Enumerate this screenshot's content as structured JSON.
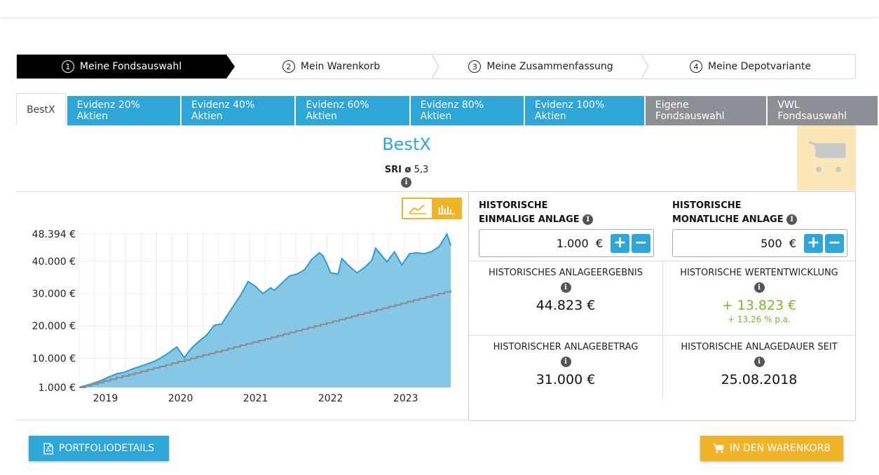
{
  "stepper": {
    "steps": [
      {
        "num": "1",
        "label": "Meine Fondsauswahl"
      },
      {
        "num": "2",
        "label": "Mein Warenkorb"
      },
      {
        "num": "3",
        "label": "Meine Zusammenfassung"
      },
      {
        "num": "4",
        "label": "Meine Depotvariante"
      }
    ],
    "active_index": 0
  },
  "tabs": [
    "BestX",
    "Evidenz 20% Aktien",
    "Evidenz 40% Aktien",
    "Evidenz 60% Aktien",
    "Evidenz 80% Aktien",
    "Evidenz 100% Aktien",
    "Eigene Fondsauswahl",
    "VWL Fondsauswahl"
  ],
  "fund": {
    "title": "BestX",
    "sri_label": "SRI ø",
    "sri_value": "5,3"
  },
  "inputs": {
    "one_time": {
      "label_line1": "HISTORISCHE",
      "label_line2": "EINMALIGE ANLAGE",
      "value": "1.000",
      "currency": "€"
    },
    "monthly": {
      "label_line1": "HISTORISCHE",
      "label_line2": "MONATLICHE ANLAGE",
      "value": "500",
      "currency": "€"
    }
  },
  "results": {
    "result_label": "HISTORISCHES ANLAGEERGEBNIS",
    "result_value": "44.823 €",
    "growth_label": "HISTORISCHE WERTENTWICKLUNG",
    "growth_value": "+ 13.823 €",
    "growth_pa": "+ 13,26 % p.a.",
    "amount_label": "HISTORISCHER ANLAGEBETRAG",
    "amount_value": "31.000 €",
    "duration_label": "HISTORISCHE ANLAGEDAUER SEIT",
    "duration_value": "25.08.2018"
  },
  "buttons": {
    "portfolio": "PORTFOLIODETAILS",
    "cart": "IN DEN WARENKORB"
  },
  "colors": {
    "accent": "#2ea7d8",
    "yellow": "#f0b429",
    "green": "#7ab829",
    "tab_grey": "#8c8f95"
  },
  "chart_data": {
    "type": "area",
    "y_tick_labels": [
      "48.394 €",
      "40.000 €",
      "30.000 €",
      "20.000 €",
      "10.000 €",
      "1.000 €"
    ],
    "y_ticks": [
      48394,
      40000,
      30000,
      20000,
      10000,
      1000
    ],
    "x_tick_labels": [
      "2019",
      "2020",
      "2021",
      "2022",
      "2023"
    ],
    "x_ticks": [
      2019.0,
      2020.0,
      2021.0,
      2022.0,
      2023.0
    ],
    "xlim": [
      2018.65,
      2023.6
    ],
    "ylim": [
      1000,
      48394
    ],
    "grid": true,
    "series": [
      {
        "kind": "area",
        "x": [
          2018.65,
          2018.8,
          2018.95,
          2019.05,
          2019.15,
          2019.25,
          2019.35,
          2019.45,
          2019.55,
          2019.65,
          2019.75,
          2019.85,
          2019.95,
          2020.05,
          2020.1,
          2020.15,
          2020.25,
          2020.35,
          2020.45,
          2020.55,
          2020.6,
          2020.7,
          2020.8,
          2020.9,
          2021.0,
          2021.05,
          2021.1,
          2021.2,
          2021.25,
          2021.35,
          2021.45,
          2021.55,
          2021.65,
          2021.75,
          2021.85,
          2021.9,
          2021.95,
          2022.0,
          2022.1,
          2022.15,
          2022.25,
          2022.35,
          2022.45,
          2022.55,
          2022.6,
          2022.7,
          2022.75,
          2022.85,
          2022.95,
          2023.05,
          2023.15,
          2023.25,
          2023.35,
          2023.45,
          2023.55,
          2023.6
        ],
        "y": [
          1000,
          2000,
          3200,
          4300,
          5200,
          5700,
          6600,
          7400,
          8200,
          9000,
          10300,
          11800,
          13500,
          10200,
          11800,
          13200,
          15300,
          17200,
          20200,
          20600,
          22500,
          26000,
          29500,
          33700,
          32200,
          31000,
          30000,
          31800,
          31000,
          33200,
          35400,
          36000,
          37300,
          40600,
          42600,
          41600,
          39200,
          36400,
          36000,
          40800,
          38400,
          36400,
          38000,
          40300,
          44000,
          41200,
          39800,
          42900,
          38800,
          42300,
          42600,
          42300,
          43000,
          44600,
          48394,
          44823
        ]
      },
      {
        "kind": "line",
        "x": [
          2018.65,
          2023.6
        ],
        "y": [
          1000,
          31000
        ]
      }
    ]
  }
}
